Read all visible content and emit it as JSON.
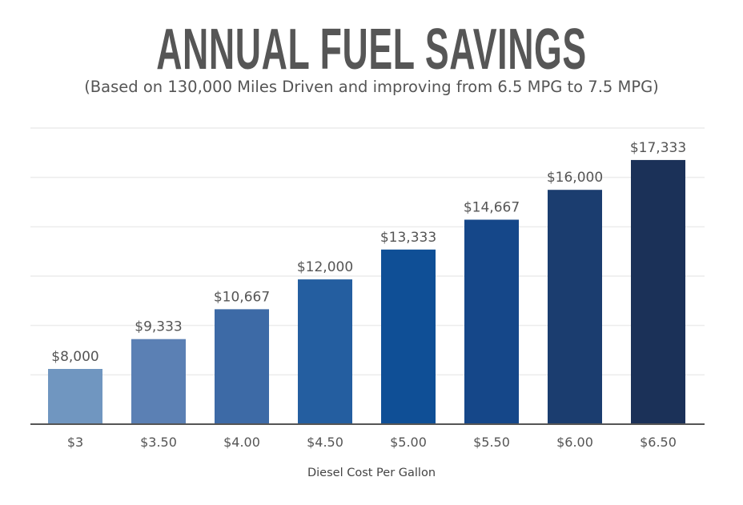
{
  "chart_data": {
    "type": "bar",
    "title": "ANNUAL FUEL SAVINGS",
    "subtitle": "(Based on 130,000 Miles Driven and improving from 6.5 MPG to 7.5 MPG)",
    "xlabel": "Diesel Cost Per Gallon",
    "ylabel": "",
    "categories": [
      "$3",
      "$3.50",
      "$4.00",
      "$4.50",
      "$5.00",
      "$5.50",
      "$6.00",
      "$6.50"
    ],
    "values": [
      8000,
      9333,
      10667,
      12000,
      13333,
      14667,
      16000,
      17333
    ],
    "data_labels": [
      "$8,000",
      "$9,333",
      "$10,667",
      "$12,000",
      "$13,333",
      "$14,667",
      "$16,000",
      "$17,333"
    ],
    "ylim": [
      5533,
      18760
    ],
    "grid": true,
    "legend": "none",
    "colors": [
      "#7096c0",
      "#5b80b4",
      "#3d6aa6",
      "#245ea0",
      "#0f4f96",
      "#154789",
      "#1b3d6f",
      "#1b3158"
    ],
    "grid_color": "#ececec",
    "axis_color": "#555555"
  }
}
